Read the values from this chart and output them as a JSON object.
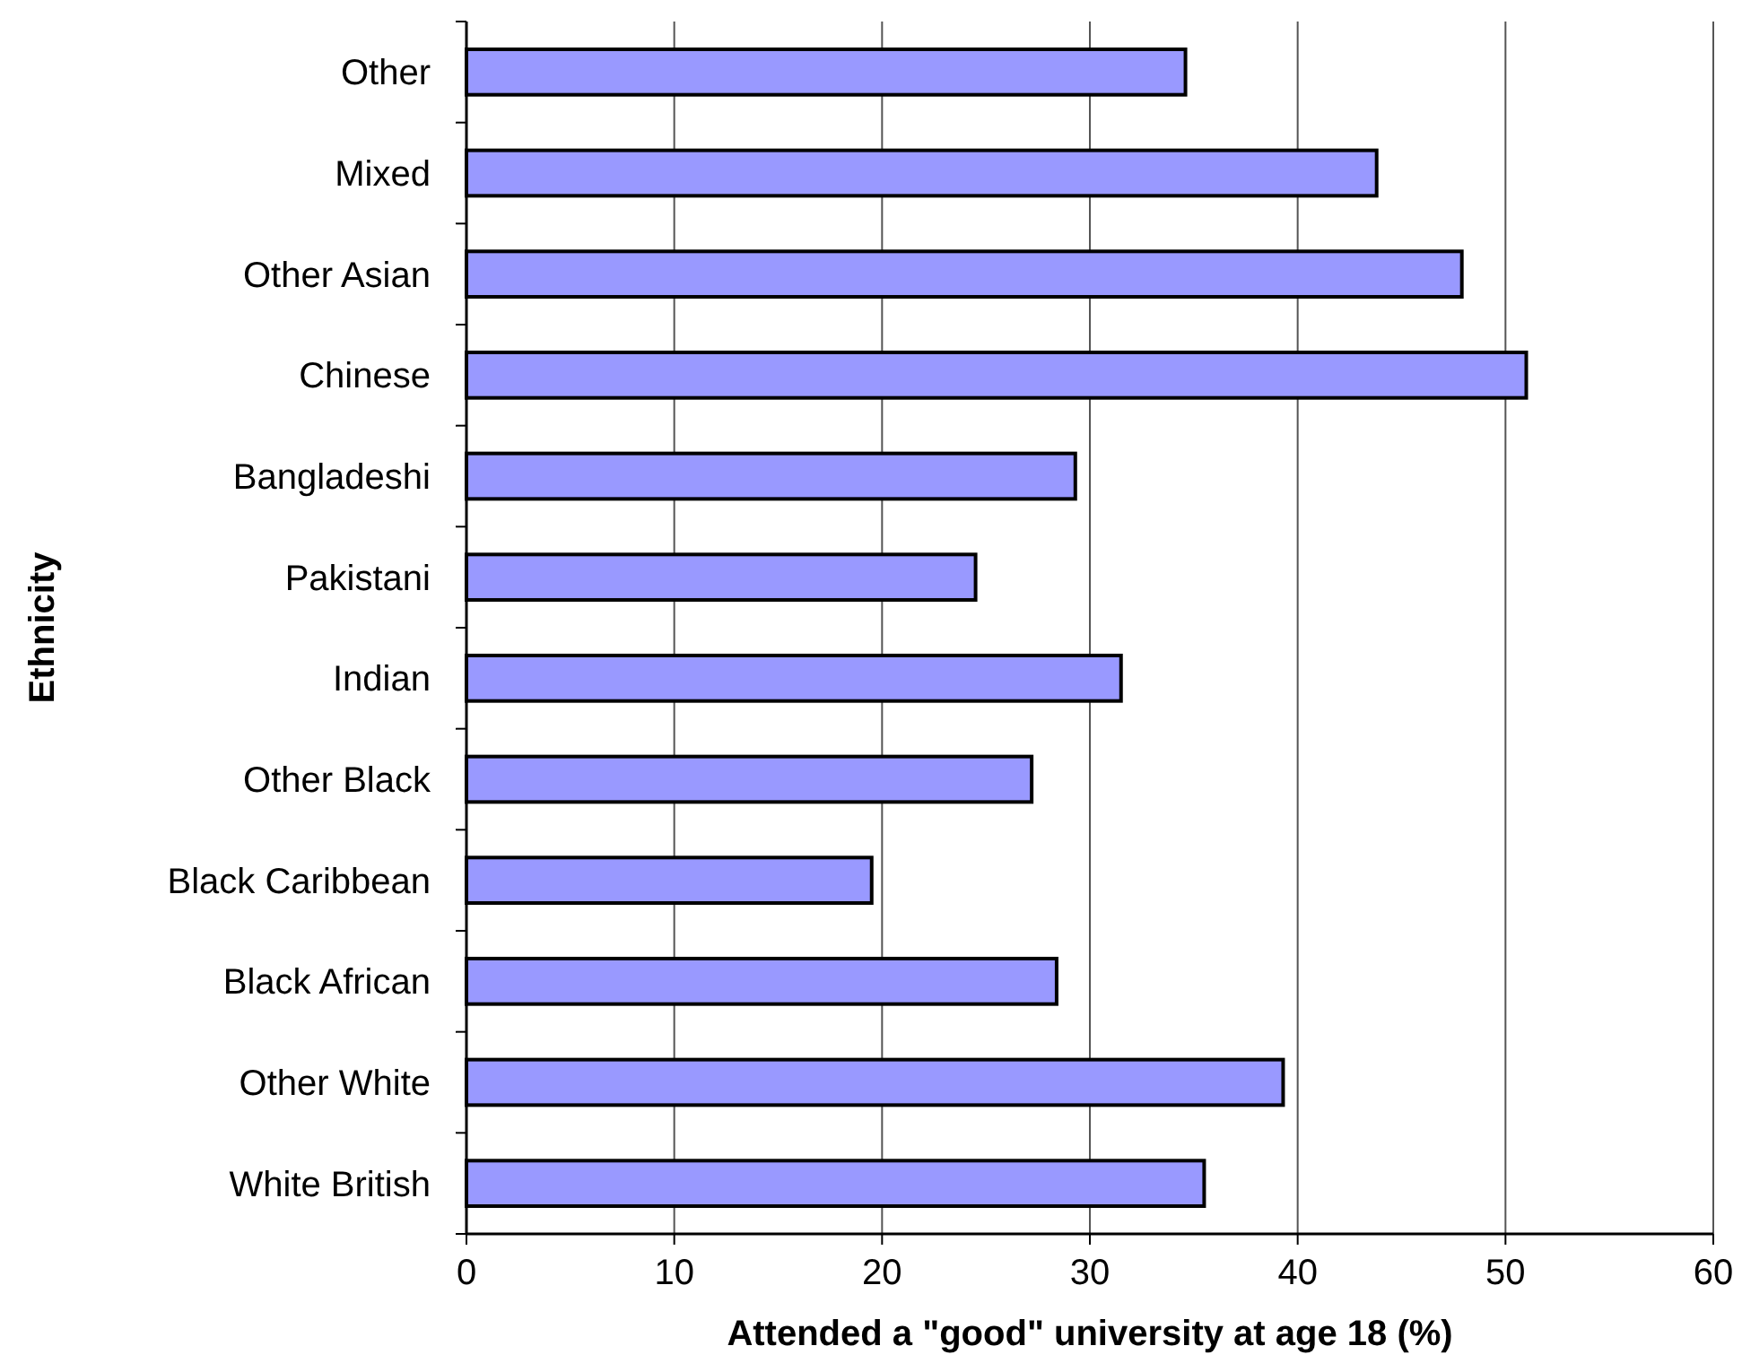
{
  "chart_data": {
    "type": "bar",
    "orientation": "horizontal",
    "xlabel": "Attended a \"good\" university at age 18 (%)",
    "ylabel": "Ethnicity",
    "categories": [
      "Other",
      "Mixed",
      "Other Asian",
      "Chinese",
      "Bangladeshi",
      "Pakistani",
      "Indian",
      "Other Black",
      "Black Caribbean",
      "Black African",
      "Other White",
      "White British"
    ],
    "values": [
      34.6,
      43.8,
      47.9,
      51.0,
      29.3,
      24.5,
      31.5,
      27.2,
      19.5,
      28.4,
      39.3,
      35.5
    ],
    "color": "#9999ff",
    "xlim": [
      0,
      60
    ],
    "xticks": [
      0,
      10,
      20,
      30,
      40,
      50,
      60
    ],
    "grid": "x"
  }
}
